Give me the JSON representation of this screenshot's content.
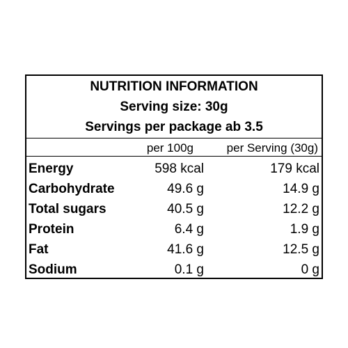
{
  "label": {
    "title": "NUTRITION INFORMATION",
    "serving_size": "Serving size: 30g",
    "servings_per_package": "Servings per package ab 3.5",
    "columns": {
      "per_100g": "per 100g",
      "per_serving": "per Serving (30g)"
    },
    "rows": [
      {
        "nutrient": "Energy",
        "per_100g": "598 kcal",
        "per_serving": "179 kcal"
      },
      {
        "nutrient": "Carbohydrate",
        "per_100g": "49.6 g",
        "per_serving": "14.9 g"
      },
      {
        "nutrient": "Total sugars",
        "per_100g": "40.5 g",
        "per_serving": "12.2 g"
      },
      {
        "nutrient": "Protein",
        "per_100g": "6.4 g",
        "per_serving": "1.9 g"
      },
      {
        "nutrient": "Fat",
        "per_100g": "41.6 g",
        "per_serving": "12.5 g"
      },
      {
        "nutrient": "Sodium",
        "per_100g": "0.1 g",
        "per_serving": "0 g"
      }
    ]
  }
}
